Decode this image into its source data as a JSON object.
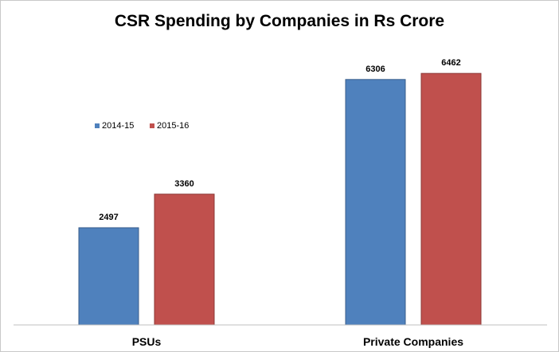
{
  "chart_data": {
    "type": "bar",
    "title": "CSR Spending by Companies in Rs Crore",
    "categories": [
      "PSUs",
      "Private Companies"
    ],
    "series": [
      {
        "name": "2014-15",
        "values": [
          2497,
          6306
        ],
        "color": "#4f81bd"
      },
      {
        "name": "2015-16",
        "values": [
          3360,
          6462
        ],
        "color": "#c0504d"
      }
    ],
    "ylim": [
      0,
      8000
    ],
    "grid": false,
    "legend": "top-left",
    "data_labels": true
  }
}
